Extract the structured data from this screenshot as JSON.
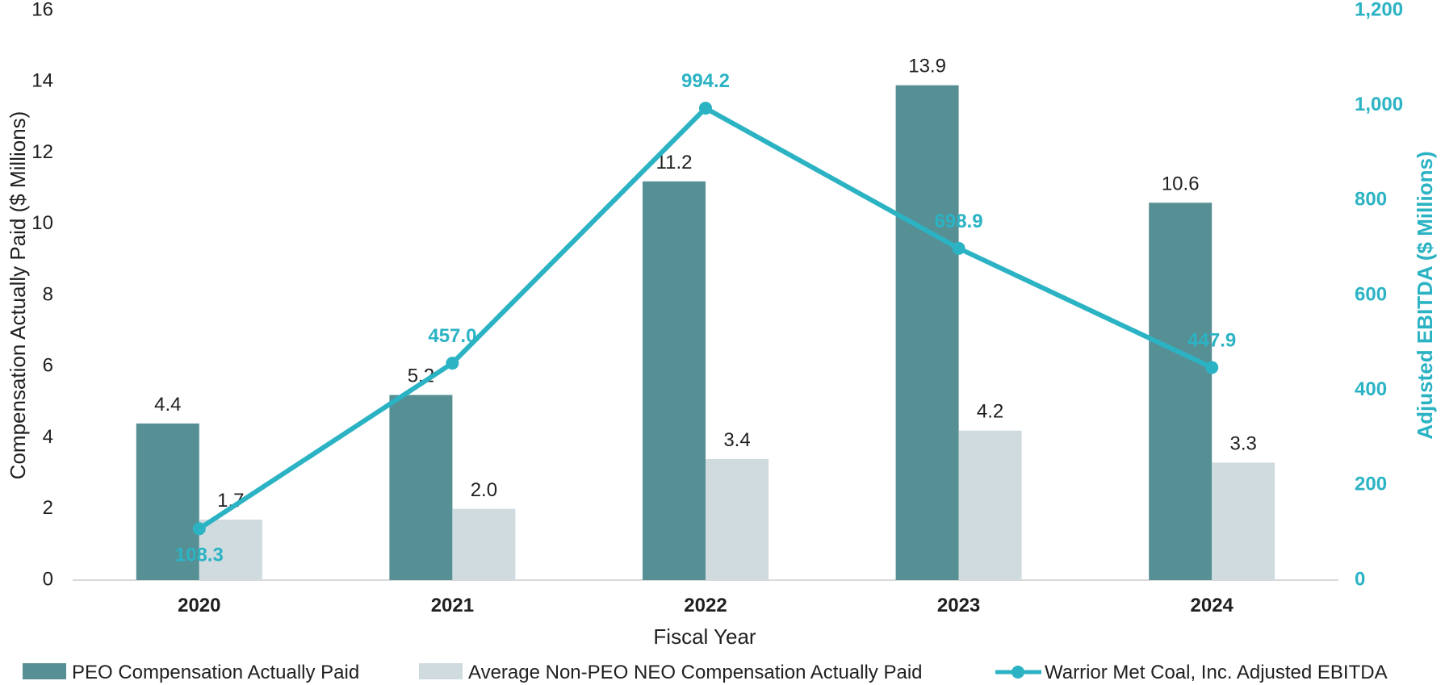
{
  "chart_data": {
    "type": "bar",
    "categories": [
      "2020",
      "2021",
      "2022",
      "2023",
      "2024"
    ],
    "series": [
      {
        "name": "PEO Compensation Actually Paid",
        "axis": "left",
        "kind": "bar",
        "color": "#568f94",
        "values": [
          4.4,
          5.2,
          11.2,
          13.9,
          10.6
        ],
        "labels": [
          "4.4",
          "5.2",
          "11.2",
          "13.9",
          "10.6"
        ]
      },
      {
        "name": "Average Non-PEO NEO Compensation Actually Paid",
        "axis": "left",
        "kind": "bar",
        "color": "#cfdbdf",
        "values": [
          1.7,
          2.0,
          3.4,
          4.2,
          3.3
        ],
        "labels": [
          "1.7",
          "2.0",
          "3.4",
          "4.2",
          "3.3"
        ]
      },
      {
        "name": "Warrior Met Coal, Inc. Adjusted EBITDA",
        "axis": "right",
        "kind": "line",
        "color": "#2bb3c4",
        "values": [
          108.3,
          457.0,
          994.2,
          698.9,
          447.9
        ],
        "labels": [
          "108.3",
          "457.0",
          "994.2",
          "698.9",
          "447.9"
        ]
      }
    ],
    "xlabel": "Fiscal Year",
    "ylabel": "Compensation Actually Paid ($ Millions)",
    "y2label": "Adjusted EBITDA ($ Millions)",
    "ylim": [
      0,
      16
    ],
    "y2lim": [
      0,
      1200
    ],
    "yticks": [
      "0",
      "2",
      "4",
      "6",
      "8",
      "10",
      "12",
      "14",
      "16"
    ],
    "y2ticks": [
      "0",
      "200",
      "400",
      "600",
      "800",
      "1,000",
      "1,200"
    ],
    "grid": false,
    "legend_position": "bottom"
  }
}
